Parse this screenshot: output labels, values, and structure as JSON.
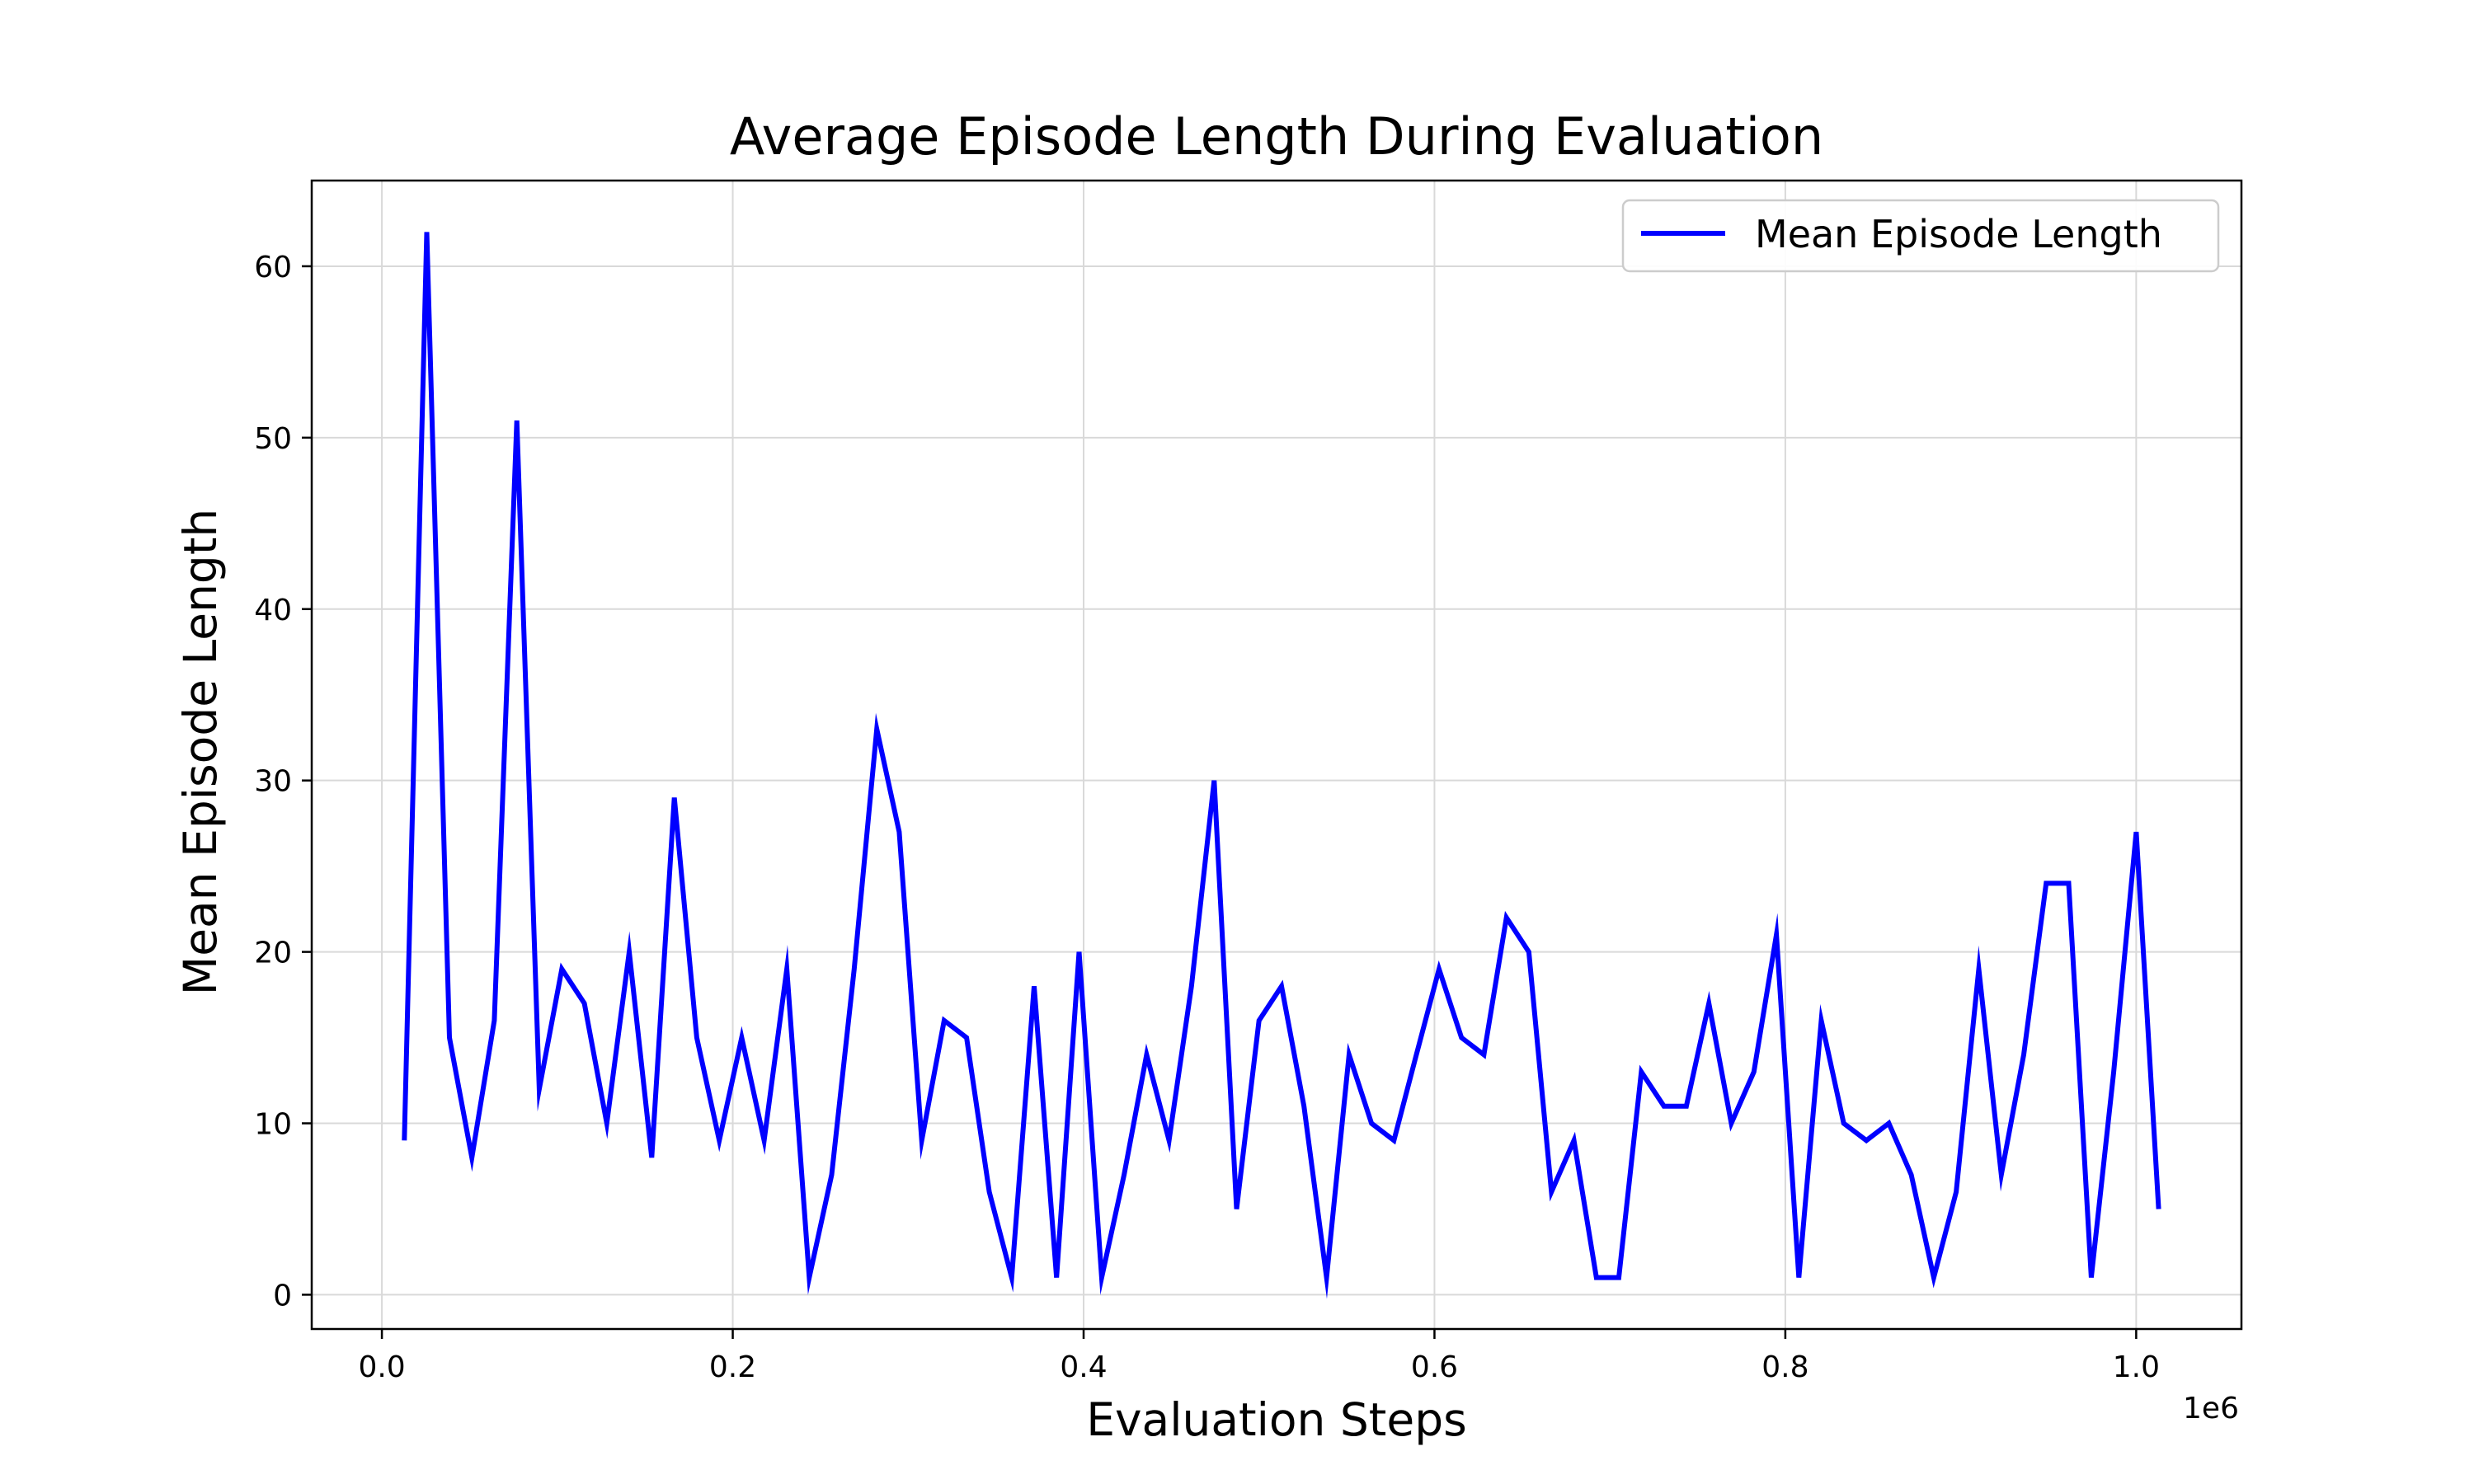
{
  "chart_data": {
    "type": "line",
    "title": "Average Episode Length During Evaluation",
    "xlabel": "Evaluation Steps",
    "ylabel": "Mean Episode Length",
    "x_scale_label": "1e6",
    "x_tick_labels": [
      "0.0",
      "0.2",
      "0.4",
      "0.6",
      "0.8",
      "1.0"
    ],
    "x_ticks": [
      0.0,
      0.2,
      0.4,
      0.6,
      0.8,
      1.0
    ],
    "y_tick_labels": [
      "0",
      "10",
      "20",
      "30",
      "40",
      "50",
      "60"
    ],
    "y_ticks": [
      0,
      10,
      20,
      30,
      40,
      50,
      60
    ],
    "xlim": [
      -0.04,
      1.06
    ],
    "ylim": [
      -2,
      65
    ],
    "grid": true,
    "legend_position": "top-right",
    "series": [
      {
        "name": "Mean Episode Length",
        "color": "#0000ff",
        "x": [
          0.0128,
          0.0256,
          0.0385,
          0.0513,
          0.0641,
          0.0769,
          0.0897,
          0.1026,
          0.1154,
          0.1282,
          0.141,
          0.1538,
          0.1667,
          0.1795,
          0.1923,
          0.2051,
          0.2179,
          0.2308,
          0.2436,
          0.2564,
          0.2692,
          0.2821,
          0.2949,
          0.3077,
          0.3205,
          0.3333,
          0.3462,
          0.359,
          0.3718,
          0.3846,
          0.3974,
          0.4103,
          0.4231,
          0.4359,
          0.4487,
          0.4615,
          0.4744,
          0.4872,
          0.5,
          0.5128,
          0.5256,
          0.5385,
          0.5513,
          0.5641,
          0.5769,
          0.5897,
          0.6026,
          0.6154,
          0.6282,
          0.641,
          0.6538,
          0.6667,
          0.6795,
          0.6923,
          0.7051,
          0.7179,
          0.7308,
          0.7436,
          0.7564,
          0.7692,
          0.7821,
          0.7949,
          0.8077,
          0.8205,
          0.8333,
          0.8462,
          0.859,
          0.8718,
          0.8846,
          0.8974,
          0.9103,
          0.9231,
          0.9359,
          0.9487,
          0.9615,
          0.9744,
          0.9872,
          1.0,
          1.0128
        ],
        "y": [
          9,
          62,
          15,
          8,
          16,
          51,
          12,
          19,
          17,
          10,
          20,
          8,
          29,
          15,
          9,
          15,
          9,
          19,
          1,
          7,
          19,
          33,
          27,
          9,
          16,
          15,
          6,
          1,
          18,
          1,
          20,
          1,
          7,
          14,
          9,
          18,
          30,
          5,
          16,
          18,
          11,
          1,
          14,
          10,
          9,
          14,
          19,
          15,
          14,
          22,
          20,
          6,
          9,
          1,
          1,
          13,
          11,
          11,
          17,
          10,
          13,
          21,
          1,
          16,
          10,
          9,
          10,
          7,
          1,
          6,
          19,
          7,
          14,
          24,
          24,
          1,
          13,
          27,
          5
        ]
      }
    ]
  }
}
